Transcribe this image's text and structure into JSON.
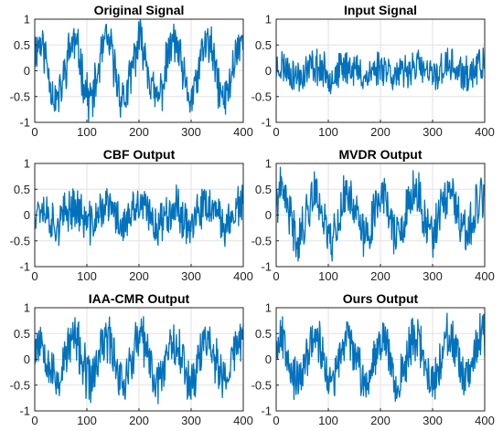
{
  "chart_data": [
    {
      "type": "line",
      "title": "Original Signal",
      "xlim": [
        0,
        400
      ],
      "ylim": [
        -1,
        1
      ],
      "x_ticks": [
        0,
        100,
        200,
        300,
        400
      ],
      "y_ticks": [
        -1,
        -0.5,
        0,
        0.5,
        1
      ],
      "grid": true,
      "series": [
        {
          "color": "#0072BD",
          "signal": {
            "n": 400,
            "amplitude": 0.55,
            "period_samples": 64,
            "phase": 0.6,
            "noise_amplitude": 0.38,
            "seed": 11
          }
        }
      ]
    },
    {
      "type": "line",
      "title": "Input Signal",
      "xlim": [
        0,
        400
      ],
      "ylim": [
        -1,
        1
      ],
      "x_ticks": [
        0,
        100,
        200,
        300,
        400
      ],
      "y_ticks": [
        -1,
        -0.5,
        0,
        0.5,
        1
      ],
      "grid": true,
      "series": [
        {
          "color": "#0072BD",
          "signal": {
            "n": 400,
            "amplitude": 0.1,
            "period_samples": 64,
            "phase": 0.6,
            "noise_amplitude": 0.3,
            "seed": 23
          }
        }
      ]
    },
    {
      "type": "line",
      "title": "CBF Output",
      "xlim": [
        0,
        400
      ],
      "ylim": [
        -1,
        1
      ],
      "x_ticks": [
        0,
        100,
        200,
        300,
        400
      ],
      "y_ticks": [
        -1,
        -0.5,
        0,
        0.5,
        1
      ],
      "grid": true,
      "series": [
        {
          "color": "#0072BD",
          "signal": {
            "n": 400,
            "amplitude": 0.18,
            "period_samples": 64,
            "phase": 0.6,
            "noise_amplitude": 0.36,
            "seed": 37
          }
        }
      ]
    },
    {
      "type": "line",
      "title": "MVDR Output",
      "xlim": [
        0,
        400
      ],
      "ylim": [
        -1,
        1
      ],
      "x_ticks": [
        0,
        100,
        200,
        300,
        400
      ],
      "y_ticks": [
        -1,
        -0.5,
        0,
        0.5,
        1
      ],
      "grid": true,
      "series": [
        {
          "color": "#0072BD",
          "signal": {
            "n": 400,
            "amplitude": 0.42,
            "period_samples": 64,
            "phase": 0.6,
            "noise_amplitude": 0.4,
            "seed": 41
          }
        }
      ]
    },
    {
      "type": "line",
      "title": "IAA-CMR Output",
      "xlim": [
        0,
        400
      ],
      "ylim": [
        -1,
        1
      ],
      "x_ticks": [
        0,
        100,
        200,
        300,
        400
      ],
      "y_ticks": [
        -1,
        -0.5,
        0,
        0.5,
        1
      ],
      "grid": true,
      "series": [
        {
          "color": "#0072BD",
          "signal": {
            "n": 400,
            "amplitude": 0.4,
            "period_samples": 64,
            "phase": 0.6,
            "noise_amplitude": 0.42,
            "seed": 53
          }
        }
      ]
    },
    {
      "type": "line",
      "title": "Ours Output",
      "xlim": [
        0,
        400
      ],
      "ylim": [
        -1,
        1
      ],
      "x_ticks": [
        0,
        100,
        200,
        300,
        400
      ],
      "y_ticks": [
        -1,
        -0.5,
        0,
        0.5,
        1
      ],
      "grid": true,
      "series": [
        {
          "color": "#0072BD",
          "signal": {
            "n": 400,
            "amplitude": 0.45,
            "period_samples": 64,
            "phase": 0.6,
            "noise_amplitude": 0.38,
            "seed": 67
          }
        }
      ]
    }
  ]
}
